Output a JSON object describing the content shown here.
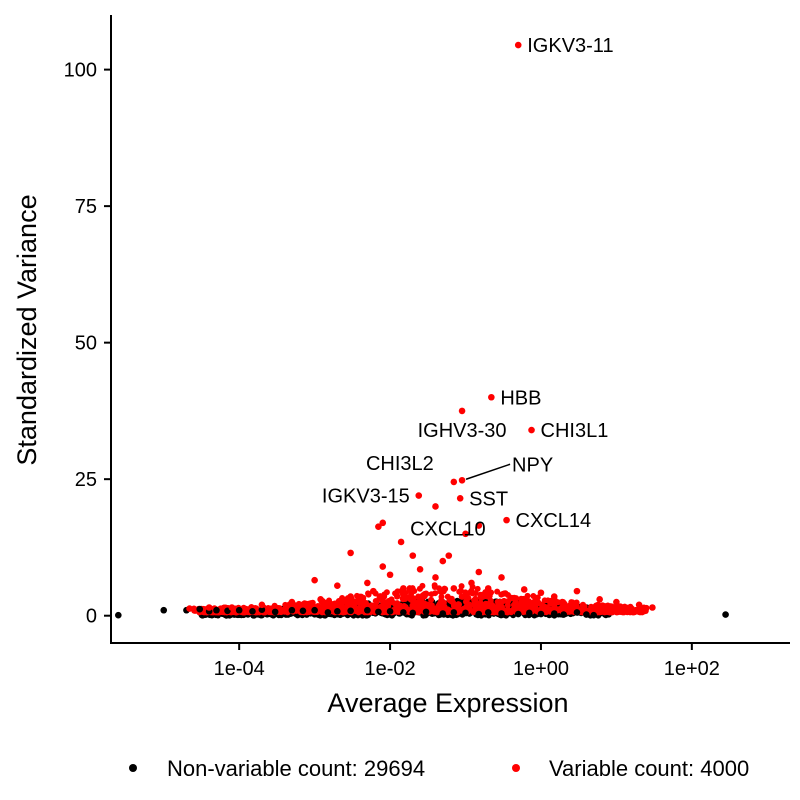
{
  "chart_data": {
    "type": "scatter",
    "title": "",
    "xlabel": "Average Expression",
    "ylabel": "Standardized Variance",
    "x_scale": "log10",
    "xlim": [
      2e-06,
      2000
    ],
    "ylim": [
      -5,
      110
    ],
    "x_ticks": [
      {
        "value": 0.0001,
        "label": "1e-04"
      },
      {
        "value": 0.01,
        "label": "1e-02"
      },
      {
        "value": 1,
        "label": "1e+00"
      },
      {
        "value": 100,
        "label": "1e+02"
      }
    ],
    "y_ticks": [
      {
        "value": 0,
        "label": "0"
      },
      {
        "value": 25,
        "label": "25"
      },
      {
        "value": 50,
        "label": "50"
      },
      {
        "value": 75,
        "label": "75"
      },
      {
        "value": 100,
        "label": "100"
      }
    ],
    "grid": false,
    "legend_position": "bottom",
    "series": [
      {
        "name": "Non-variable count: 29694",
        "color": "#000000",
        "points": [
          [
            2.5e-06,
            0.1
          ],
          [
            1e-05,
            1.0
          ],
          [
            2e-05,
            1.0
          ],
          [
            3e-05,
            1.2
          ],
          [
            4e-05,
            0.8
          ],
          [
            5e-05,
            1.0
          ],
          [
            7e-05,
            0.9
          ],
          [
            0.0001,
            1.0
          ],
          [
            0.00015,
            0.8
          ],
          [
            0.0002,
            1.1
          ],
          [
            0.0003,
            0.7
          ],
          [
            0.0005,
            1.0
          ],
          [
            0.0007,
            0.9
          ],
          [
            0.001,
            1.0
          ],
          [
            0.0015,
            0.6
          ],
          [
            0.002,
            0.8
          ],
          [
            0.003,
            0.9
          ],
          [
            0.005,
            1.0
          ],
          [
            0.007,
            0.7
          ],
          [
            0.01,
            0.8
          ],
          [
            0.015,
            0.6
          ],
          [
            0.02,
            0.5
          ],
          [
            0.03,
            0.7
          ],
          [
            0.05,
            0.4
          ],
          [
            0.07,
            0.6
          ],
          [
            0.1,
            0.5
          ],
          [
            0.15,
            0.3
          ],
          [
            0.2,
            0.6
          ],
          [
            0.3,
            0.4
          ],
          [
            0.5,
            0.3
          ],
          [
            0.7,
            0.5
          ],
          [
            1.0,
            0.3
          ],
          [
            1.5,
            0.4
          ],
          [
            2.0,
            0.2
          ],
          [
            3.0,
            0.6
          ],
          [
            4.0,
            0.2
          ],
          [
            5.0,
            0.1
          ],
          [
            280,
            0.2
          ]
        ]
      },
      {
        "name": "Variable count: 4000",
        "color": "#ff0000",
        "points": [
          [
            0.5,
            104.5
          ],
          [
            0.22,
            40.0
          ],
          [
            0.09,
            37.5
          ],
          [
            0.75,
            34.0
          ],
          [
            0.07,
            24.5
          ],
          [
            0.09,
            24.8
          ],
          [
            0.085,
            21.5
          ],
          [
            0.024,
            22.0
          ],
          [
            0.04,
            20.0
          ],
          [
            0.35,
            17.5
          ],
          [
            0.15,
            16.5
          ],
          [
            0.008,
            17.0
          ],
          [
            0.007,
            16.3
          ],
          [
            0.014,
            13.5
          ],
          [
            0.1,
            15.0
          ],
          [
            0.003,
            11.5
          ],
          [
            0.02,
            11.0
          ],
          [
            0.06,
            11.0
          ],
          [
            0.05,
            10.0
          ],
          [
            0.008,
            9.0
          ],
          [
            0.025,
            8.5
          ],
          [
            0.15,
            8.0
          ],
          [
            0.3,
            7.0
          ],
          [
            0.01,
            7.5
          ],
          [
            0.04,
            7.0
          ],
          [
            0.001,
            6.5
          ],
          [
            0.002,
            5.5
          ],
          [
            0.005,
            6.0
          ],
          [
            0.07,
            5.0
          ],
          [
            0.2,
            5.0
          ],
          [
            0.6,
            4.8
          ],
          [
            1.0,
            4.2
          ],
          [
            1.5,
            3.5
          ],
          [
            3.0,
            4.5
          ],
          [
            6.0,
            3.0
          ],
          [
            10.0,
            2.5
          ],
          [
            20.0,
            2.0
          ],
          [
            30.0,
            1.5
          ],
          [
            2.2e-05,
            1.3
          ],
          [
            4e-05,
            1.5
          ],
          [
            8e-05,
            1.5
          ],
          [
            0.0002,
            2.0
          ],
          [
            0.0005,
            2.5
          ],
          [
            0.0012,
            3.0
          ],
          [
            0.003,
            3.5
          ],
          [
            0.006,
            4.5
          ],
          [
            0.015,
            5.0
          ],
          [
            0.03,
            4.0
          ],
          [
            0.09,
            3.5
          ],
          [
            0.12,
            6.0
          ]
        ]
      }
    ],
    "annotations": [
      {
        "text": "IGKV3-11",
        "x": 0.5,
        "y": 104.5,
        "anchor": "start"
      },
      {
        "text": "HBB",
        "x": 0.22,
        "y": 40.0,
        "anchor": "start"
      },
      {
        "text": "IGHV3-30",
        "x": 0.09,
        "y": 34.0,
        "anchor": "middle"
      },
      {
        "text": "CHI3L1",
        "x": 0.75,
        "y": 34.0,
        "anchor": "start"
      },
      {
        "text": "CHI3L2",
        "x": 0.05,
        "y": 28.0,
        "anchor": "end"
      },
      {
        "text": "NPY",
        "x": 0.09,
        "y": 24.8,
        "anchor": "start",
        "leader": true
      },
      {
        "text": "SST",
        "x": 0.085,
        "y": 21.5,
        "anchor": "start"
      },
      {
        "text": "IGKV3-15",
        "x": 0.024,
        "y": 22.0,
        "anchor": "end"
      },
      {
        "text": "CXCL10",
        "x": 0.014,
        "y": 16.0,
        "anchor": "start"
      },
      {
        "text": "CXCL14",
        "x": 0.35,
        "y": 17.5,
        "anchor": "start"
      }
    ]
  },
  "legend": {
    "items": [
      {
        "label": "Non-variable count: 29694",
        "color": "#000000"
      },
      {
        "label": "Variable count: 4000",
        "color": "#ff0000"
      }
    ]
  }
}
